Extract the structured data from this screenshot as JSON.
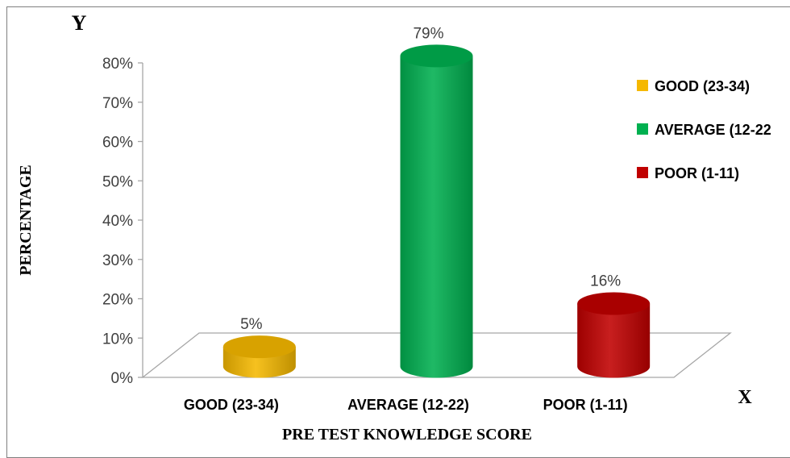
{
  "chart_data": {
    "type": "bar",
    "style": "3d-cylinder",
    "categories": [
      "GOOD  (23-34)",
      "AVERAGE (12-22)",
      "POOR  (1-11)"
    ],
    "values": [
      5,
      79,
      16
    ],
    "value_labels": [
      "5%",
      "79%",
      "16%"
    ],
    "colors": [
      "#f5b800",
      "#00b050",
      "#c00000"
    ],
    "ylim": [
      0,
      80
    ],
    "ytick_labels": [
      "0%",
      "10%",
      "20%",
      "30%",
      "40%",
      "50%",
      "60%",
      "70%",
      "80%"
    ],
    "y_axis_marker": "Y",
    "x_axis_marker": "X",
    "ylabel": "PERCENTAGE",
    "xlabel": "PRE TEST KNOWLEDGE SCORE",
    "grid": false,
    "legend": {
      "position": "right",
      "entries": [
        "GOOD  (23-34)",
        "AVERAGE (12-22",
        "POOR  (1-11)"
      ]
    }
  }
}
